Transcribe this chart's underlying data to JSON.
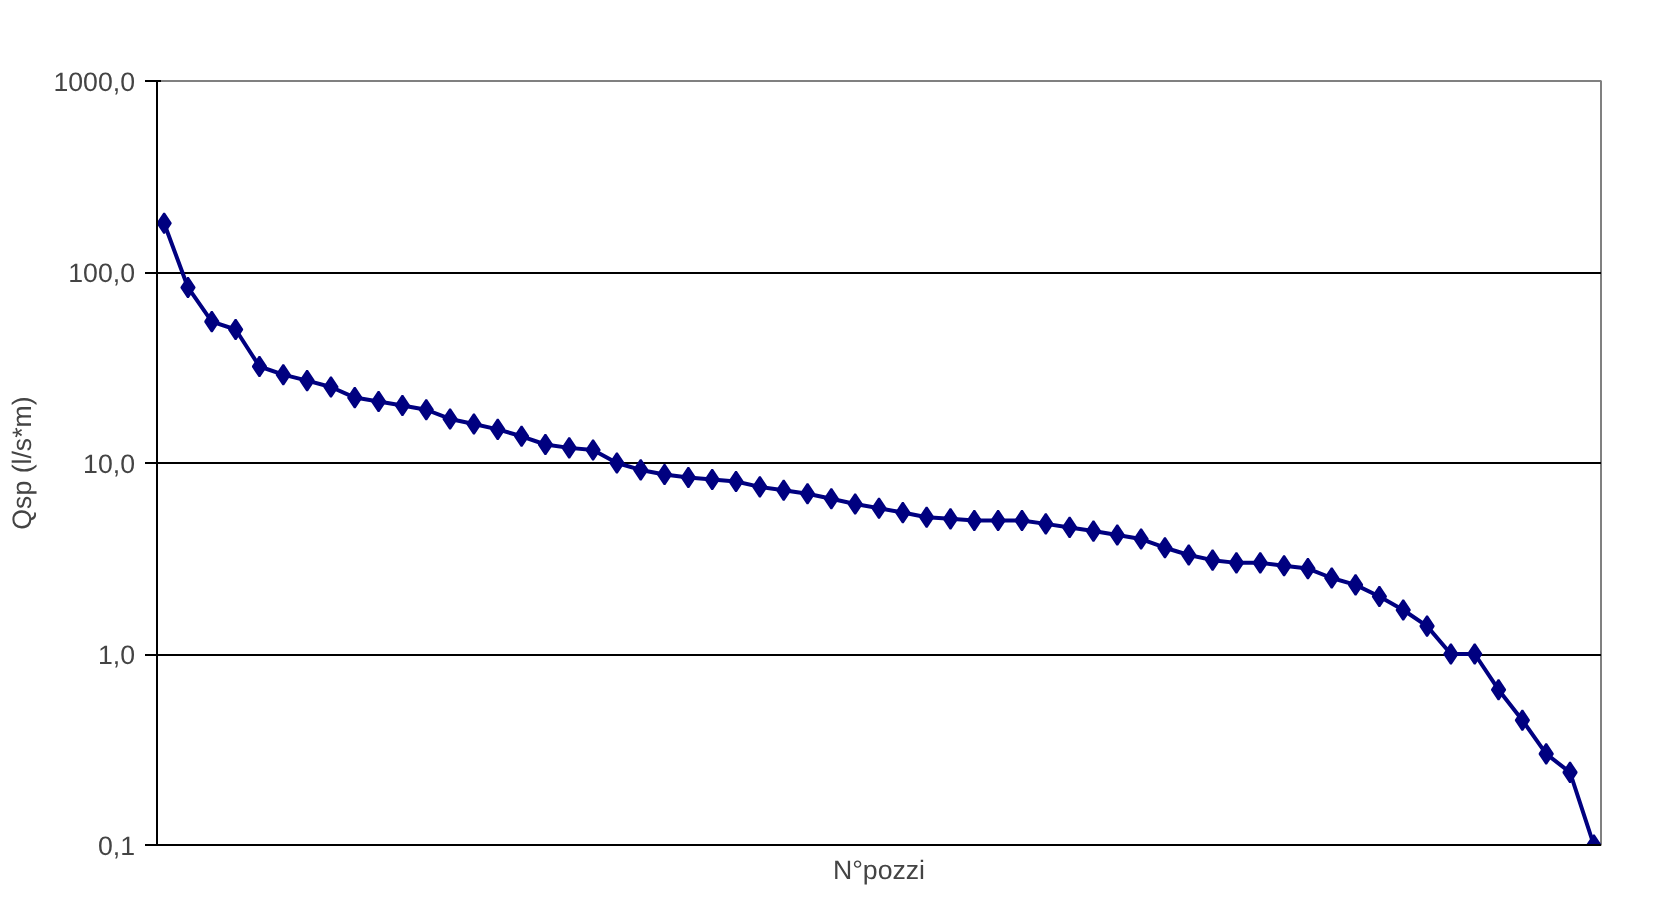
{
  "chart_data": {
    "type": "line",
    "xlabel": "N°pozzi",
    "ylabel": "Qsp (l/s*m)",
    "categories": [
      null,
      null,
      null,
      null,
      null,
      null,
      null,
      null,
      null,
      null,
      null,
      null,
      null,
      null,
      null,
      null,
      null,
      null,
      null,
      null,
      null,
      null,
      null,
      null,
      null,
      null,
      null,
      null,
      null,
      null,
      null,
      null,
      null,
      null,
      null,
      null,
      null,
      null,
      null,
      null,
      null,
      null,
      null,
      null,
      null,
      null,
      null,
      null,
      null,
      null,
      null,
      null,
      null,
      null,
      null,
      null,
      null,
      null,
      null,
      null,
      null
    ],
    "series": [
      {
        "color": "#000080",
        "values": [
          180,
          83,
          55,
          50,
          32,
          29,
          27,
          25,
          22,
          21,
          20,
          19,
          17,
          16,
          15,
          13.8,
          12.5,
          12,
          11.7,
          10,
          9.2,
          8.7,
          8.4,
          8.2,
          8.0,
          7.5,
          7.2,
          6.9,
          6.5,
          6.1,
          5.8,
          5.5,
          5.2,
          5.1,
          5.0,
          5.0,
          5.0,
          4.8,
          4.6,
          4.4,
          4.2,
          4.0,
          3.6,
          3.3,
          3.1,
          3.0,
          3.0,
          2.9,
          2.8,
          2.5,
          2.3,
          2.0,
          1.7,
          1.4,
          1.0,
          1.0,
          0.65,
          0.45,
          0.3,
          0.24,
          0.1
        ]
      }
    ],
    "log": "y",
    "ylim": [
      0.1,
      1000
    ],
    "yticks": [
      {
        "value": 0.1,
        "label": "0,1"
      },
      {
        "value": 1,
        "label": "1,0"
      },
      {
        "value": 10,
        "label": "10,0"
      },
      {
        "value": 100,
        "label": "100,0"
      },
      {
        "value": 1000,
        "label": "1000,0"
      }
    ],
    "grid": "y",
    "tick_labels": "y",
    "marker": "diamond",
    "line_style": "solid"
  }
}
